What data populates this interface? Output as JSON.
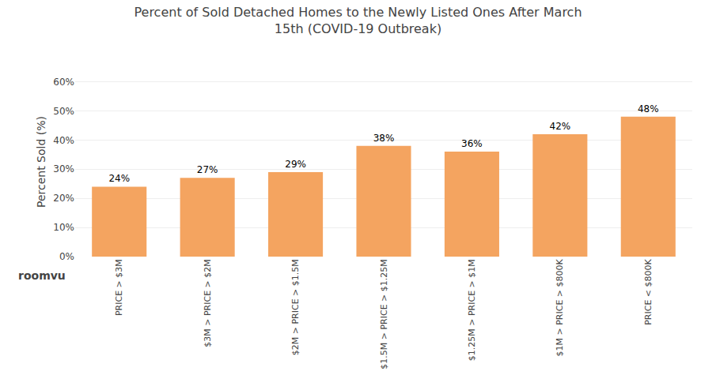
{
  "chart_data": {
    "type": "bar",
    "title": "Percent of Sold Detached Homes to the Newly Listed Ones After March\n15th (COVID-19 Outbreak)",
    "categories": [
      "PRICE > $3M",
      "$3M > PRICE > $2M",
      "$2M > PRICE > $1.5M",
      "$1.5M > PRICE > $1.25M",
      "$1.25M > PRICE > $1M",
      "$1M > PRICE > $800K",
      "PRICE < $800K"
    ],
    "values": [
      24,
      27,
      29,
      38,
      36,
      42,
      48
    ],
    "value_labels": [
      "24%",
      "27%",
      "29%",
      "38%",
      "36%",
      "42%",
      "48%"
    ],
    "data_labels": true,
    "color": "#F4A460",
    "ylabel": "Percent Sold (%)",
    "ylim": [
      0,
      65
    ],
    "yticks": [
      {
        "value": 0,
        "label": "0%"
      },
      {
        "value": 10,
        "label": "10%"
      },
      {
        "value": 20,
        "label": "20%"
      },
      {
        "value": 30,
        "label": "30%"
      },
      {
        "value": 40,
        "label": "40%"
      },
      {
        "value": 50,
        "label": "50%"
      },
      {
        "value": 60,
        "label": "60%"
      }
    ],
    "grid": true,
    "annotations": [
      {
        "text": "roomvu"
      }
    ]
  }
}
